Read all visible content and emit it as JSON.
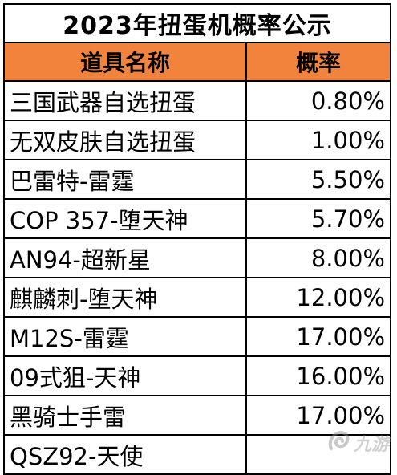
{
  "title": "2023年扭蛋机概率公示",
  "header": {
    "name_label": "道具名称",
    "prob_label": "概率"
  },
  "colors": {
    "header_bg": "#f2833c",
    "border": "#000000"
  },
  "rows": [
    {
      "name": "三国武器自选扭蛋",
      "prob": "0.80%"
    },
    {
      "name": "无双皮肤自选扭蛋",
      "prob": "1.00%"
    },
    {
      "name": "巴雷特-雷霆",
      "prob": "5.50%"
    },
    {
      "name": "COP 357-堕天神",
      "prob": "5.70%"
    },
    {
      "name": "AN94-超新星",
      "prob": "8.00%"
    },
    {
      "name": "麒麟刺-堕天神",
      "prob": "12.00%"
    },
    {
      "name": "M12S-雷霆",
      "prob": "17.00%"
    },
    {
      "name": "09式狙-天神",
      "prob": "16.00%"
    },
    {
      "name": "黑骑士手雷",
      "prob": "17.00%"
    },
    {
      "name": "QSZ92-天使",
      "prob": ""
    }
  ],
  "watermark": {
    "icon": "jiuyou-logo-icon",
    "text": "九游"
  }
}
